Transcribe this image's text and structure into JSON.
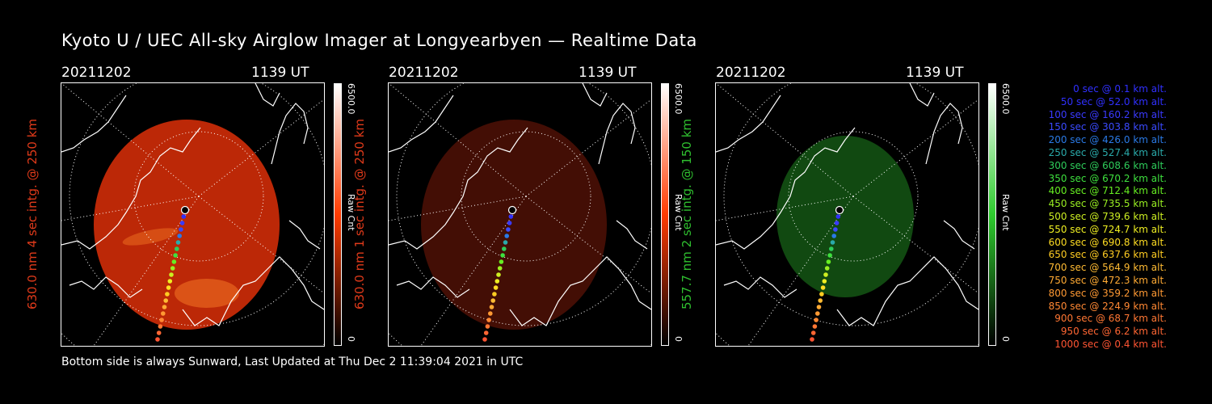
{
  "title": "Kyoto U / UEC All-sky Airglow Imager at Longyearbyen — Realtime Data",
  "footer": "Bottom side is always Sunward, Last Updated at Thu Dec  2 11:39:04 2021 in UTC",
  "panels": [
    {
      "date": "20211202",
      "time": "1139 UT",
      "ylabel": "630.0 nm 4 sec intg. @ 250 km",
      "label_color": "#e03a1a",
      "cbar_max": "6500.0",
      "cbar_min": "0",
      "cbar_label": "Raw Cnt",
      "cbar_color": "#ff3b00",
      "glow": "#c62a07",
      "glow_opacity": 0.95
    },
    {
      "date": "20211202",
      "time": "1139 UT",
      "ylabel": "630.0 nm 1 sec intg. @ 250 km",
      "label_color": "#e03a1a",
      "cbar_max": "6500.0",
      "cbar_min": "0",
      "cbar_label": "Raw Cnt",
      "cbar_color": "#ff3b00",
      "glow": "#4a0f05",
      "glow_opacity": 0.9
    },
    {
      "date": "20211202",
      "time": "1139 UT",
      "ylabel": "557.7 nm 2 sec intg. @ 150 km",
      "label_color": "#2fbf2f",
      "cbar_max": "6500.0",
      "cbar_min": "0",
      "cbar_label": "Raw Cnt",
      "cbar_color": "#2ecc2e",
      "glow": "#124d12",
      "glow_opacity": 0.95
    }
  ],
  "legend": [
    {
      "text": "0 sec @    0.1 km alt.",
      "color": "#3030ff"
    },
    {
      "text": "50 sec @   52.0 km alt.",
      "color": "#3030ff"
    },
    {
      "text": "100 sec @  160.2 km alt.",
      "color": "#3a3aff"
    },
    {
      "text": "150 sec @  303.8 km alt.",
      "color": "#3a4aff"
    },
    {
      "text": "200 sec @  426.0 km alt.",
      "color": "#2a7ae6"
    },
    {
      "text": "250 sec @  527.4 km alt.",
      "color": "#2aaaaa"
    },
    {
      "text": "300 sec @  608.6 km alt.",
      "color": "#2ecc5a"
    },
    {
      "text": "350 sec @  670.2 km alt.",
      "color": "#3ee03e"
    },
    {
      "text": "400 sec @  712.4 km alt.",
      "color": "#66ee22"
    },
    {
      "text": "450 sec @  735.5 km alt.",
      "color": "#99ee22"
    },
    {
      "text": "500 sec @  739.6 km alt.",
      "color": "#ccee22"
    },
    {
      "text": "550 sec @  724.7 km alt.",
      "color": "#eeee22"
    },
    {
      "text": "600 sec @  690.8 km alt.",
      "color": "#ffdd22"
    },
    {
      "text": "650 sec @  637.6 km alt.",
      "color": "#ffcc22"
    },
    {
      "text": "700 sec @  564.9 km alt.",
      "color": "#ffbb33"
    },
    {
      "text": "750 sec @  472.3 km alt.",
      "color": "#ffaa33"
    },
    {
      "text": "800 sec @  359.2 km alt.",
      "color": "#ff9933"
    },
    {
      "text": "850 sec @  224.9 km alt.",
      "color": "#ff8833"
    },
    {
      "text": "900 sec @   68.7 km alt.",
      "color": "#ff7733"
    },
    {
      "text": "950 sec @    6.2 km alt.",
      "color": "#ff6633"
    },
    {
      "text": "1000 sec @    0.4 km alt.",
      "color": "#ff5533"
    }
  ]
}
